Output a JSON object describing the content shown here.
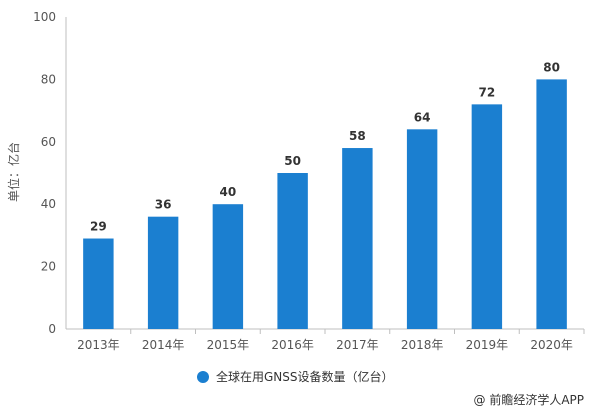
{
  "chart_data": {
    "type": "bar",
    "categories": [
      "2013年",
      "2014年",
      "2015年",
      "2016年",
      "2017年",
      "2018年",
      "2019年",
      "2020年"
    ],
    "values": [
      29,
      36,
      40,
      50,
      58,
      64,
      72,
      80
    ],
    "series": [
      {
        "name": "全球在用GNSS设备数量（亿台）",
        "values": [
          29,
          36,
          40,
          50,
          58,
          64,
          72,
          80
        ]
      }
    ],
    "title": "",
    "xlabel": "",
    "ylabel": "单位：亿台",
    "ylim": [
      0,
      100
    ],
    "yticks": [
      0,
      20,
      40,
      60,
      80,
      100
    ],
    "grid": false,
    "legend_position": "bottom",
    "bar_color": "#1b7fd0"
  },
  "credit": "@ 前瞻经济学人APP"
}
